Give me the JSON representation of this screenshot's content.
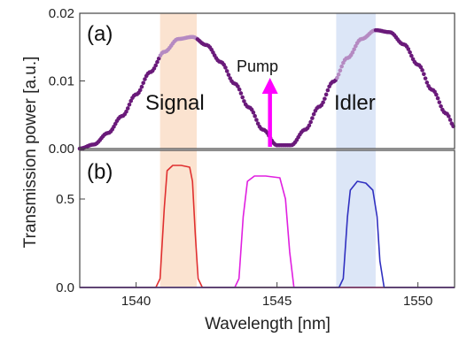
{
  "chart_data": [
    {
      "panel": "(a)",
      "type": "scatter",
      "ylim": [
        0,
        0.02
      ],
      "xlim": [
        1538,
        1551.3
      ],
      "y_ticks": [
        "0.00",
        "0.01",
        "0.02"
      ],
      "highlight_bands": [
        {
          "x_range": [
            1540.85,
            1542.15
          ],
          "color": "#fbe3d0"
        },
        {
          "x_range": [
            1547.1,
            1548.5
          ],
          "color": "#dce6f7"
        }
      ],
      "series": [
        {
          "color": "#6a1a7a",
          "highlight_color": "#b58ac2",
          "x": [
            1538.0,
            1538.5,
            1539.0,
            1539.5,
            1540.0,
            1540.5,
            1541.0,
            1541.5,
            1542.0,
            1542.5,
            1543.0,
            1543.5,
            1544.0,
            1544.5,
            1545.0,
            1545.5,
            1546.0,
            1546.5,
            1547.0,
            1547.5,
            1548.0,
            1548.5,
            1549.0,
            1549.5,
            1550.0,
            1550.5,
            1551.0,
            1551.3
          ],
          "y": [
            0.0,
            0.0006,
            0.0023,
            0.0048,
            0.008,
            0.0113,
            0.0143,
            0.0162,
            0.0165,
            0.0153,
            0.0128,
            0.0096,
            0.0061,
            0.0028,
            0.0005,
            0.0005,
            0.0028,
            0.0062,
            0.0099,
            0.0134,
            0.0162,
            0.0175,
            0.0172,
            0.0154,
            0.0124,
            0.0087,
            0.0052,
            0.0032
          ]
        }
      ],
      "annotations": {
        "signal": "Signal",
        "idler": "Idler",
        "pump": "Pump"
      },
      "pump_arrow_x": 1544.75
    },
    {
      "panel": "(b)",
      "type": "line",
      "ylim": [
        0,
        0.75
      ],
      "xlim": [
        1538,
        1551.3
      ],
      "y_ticks": [
        "0.0",
        "0.5"
      ],
      "x_ticks": [
        "1540",
        "1545",
        "1550"
      ],
      "highlight_bands": [
        {
          "x_range": [
            1540.85,
            1542.15
          ],
          "color": "#fbe3d0"
        },
        {
          "x_range": [
            1547.1,
            1548.5
          ],
          "color": "#dce6f7"
        }
      ],
      "series": [
        {
          "color": "#e03030",
          "x": [
            1538.0,
            1540.7,
            1540.85,
            1541.0,
            1541.1,
            1541.3,
            1541.6,
            1541.9,
            1542.0,
            1542.1,
            1542.2,
            1542.35,
            1551.3
          ],
          "y": [
            0.0,
            0.0,
            0.05,
            0.45,
            0.66,
            0.69,
            0.69,
            0.68,
            0.6,
            0.3,
            0.05,
            0.0,
            0.0
          ]
        },
        {
          "color": "#e020e0",
          "x": [
            1538.0,
            1543.5,
            1543.65,
            1543.8,
            1543.95,
            1544.2,
            1544.6,
            1545.1,
            1545.3,
            1545.45,
            1545.6,
            1551.3
          ],
          "y": [
            0.0,
            0.0,
            0.05,
            0.4,
            0.6,
            0.63,
            0.63,
            0.62,
            0.5,
            0.2,
            0.0,
            0.0
          ]
        },
        {
          "color": "#3030c0",
          "x": [
            1538.0,
            1547.2,
            1547.35,
            1547.5,
            1547.6,
            1547.85,
            1548.15,
            1548.4,
            1548.55,
            1548.65,
            1548.8,
            1551.3
          ],
          "y": [
            0.0,
            0.0,
            0.05,
            0.4,
            0.55,
            0.6,
            0.59,
            0.55,
            0.4,
            0.15,
            0.0,
            0.0
          ]
        }
      ]
    }
  ],
  "labels": {
    "ylabel": "Transmission power [a.u.]",
    "xlabel": "Wavelength [nm]"
  }
}
